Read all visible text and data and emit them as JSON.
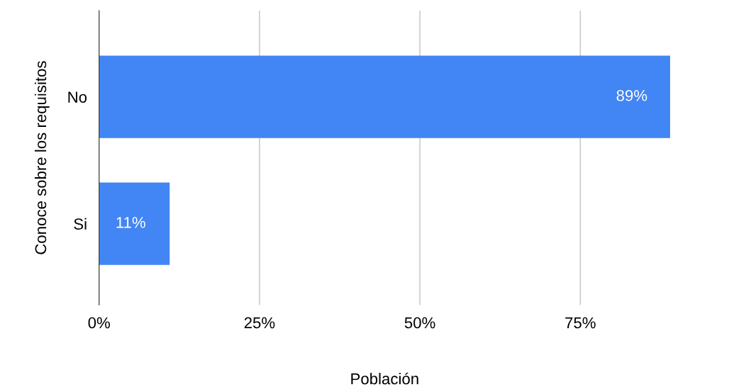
{
  "chart_data": {
    "type": "bar",
    "orientation": "horizontal",
    "xlabel": "Población",
    "ylabel": "Conoce sobre los requisitos",
    "categories": [
      "No",
      "Si"
    ],
    "series": [
      {
        "color": "#4285f4",
        "values": [
          89,
          11
        ],
        "value_labels": [
          "89%",
          "11%"
        ]
      }
    ],
    "xlim": [
      0,
      89
    ],
    "xticks": [
      {
        "value": 0,
        "label": "0%"
      },
      {
        "value": 25,
        "label": "25%"
      },
      {
        "value": 50,
        "label": "50%"
      },
      {
        "value": 75,
        "label": "75%"
      }
    ],
    "grid": "x",
    "legend": false
  }
}
